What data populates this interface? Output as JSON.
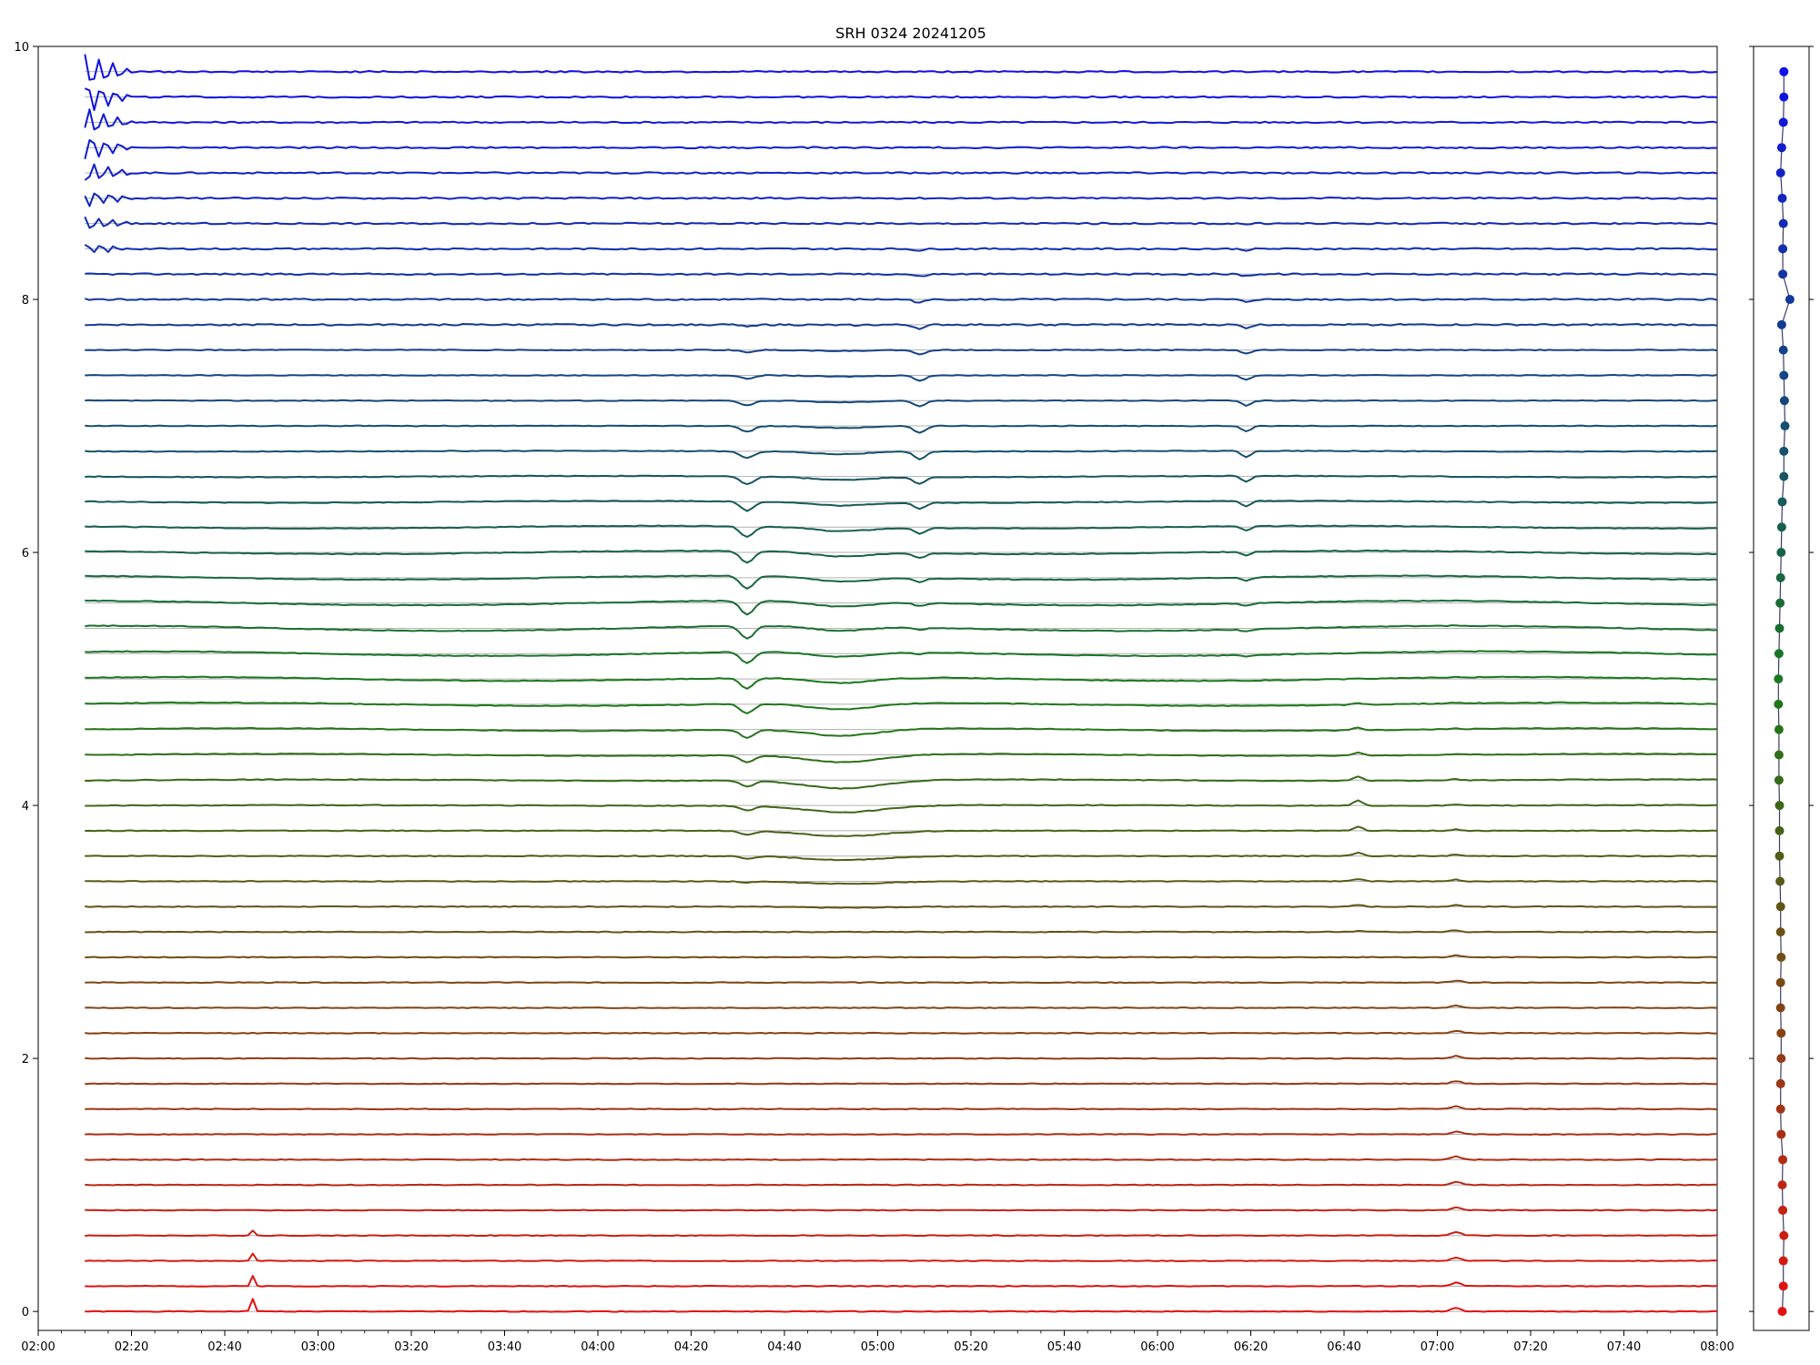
{
  "chart_data": {
    "type": "line",
    "title": "SRH 0324 20241205",
    "xlabel": "",
    "ylabel": "",
    "x_range": [
      "02:00",
      "08:00"
    ],
    "x_ticks": [
      "02:00",
      "02:20",
      "02:40",
      "03:00",
      "03:20",
      "03:40",
      "04:00",
      "04:20",
      "04:40",
      "05:00",
      "05:20",
      "05:40",
      "06:00",
      "06:20",
      "06:40",
      "07:00",
      "07:20",
      "07:40",
      "08:00"
    ],
    "ylim": [
      -0.15,
      10
    ],
    "y_ticks": [
      0,
      2,
      4,
      6,
      8,
      10
    ],
    "grid": false,
    "series_count": 50,
    "series_offset_step": 0.2,
    "data_start": "02:10",
    "data_end": "08:00",
    "color_start": "#e41010",
    "color_mid": "#1a7a1a",
    "color_end": "#1010e8",
    "side_panel_markers": [
      0.0,
      0.02,
      0.02,
      0.03,
      0.01,
      0.0,
      0.01,
      -0.02,
      -0.03,
      -0.03,
      -0.02,
      -0.02,
      -0.03,
      -0.03,
      -0.02,
      -0.03,
      -0.03,
      -0.04,
      -0.05,
      -0.05,
      -0.05,
      -0.06,
      -0.06,
      -0.06,
      -0.07,
      -0.07,
      -0.06,
      -0.05,
      -0.04,
      -0.03,
      -0.02,
      -0.01,
      0.0,
      0.03,
      0.03,
      0.05,
      0.04,
      0.03,
      0.02,
      -0.01,
      0.14,
      0.01,
      0.01,
      0.02,
      0.0,
      -0.03,
      -0.01,
      0.02,
      0.03,
      0.03
    ]
  }
}
